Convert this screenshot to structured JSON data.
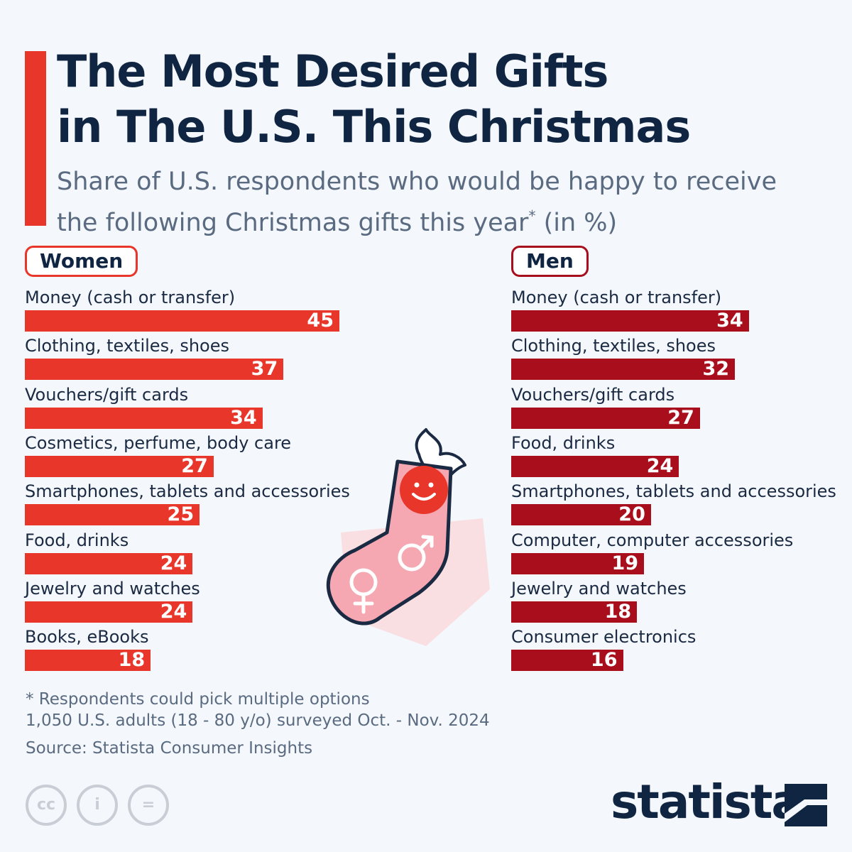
{
  "title_line1": "The Most Desired Gifts",
  "title_line2": "in The U.S. This Christmas",
  "subtitle_line1": "Share of U.S. respondents who would be happy to receive",
  "subtitle_line2_pre": "the following Christmas gifts this year",
  "subtitle_asterisk": "*",
  "subtitle_line2_post": " (in %)",
  "colors": {
    "women": "#e8362b",
    "men": "#a80e1b",
    "title": "#0f2542",
    "muted": "#5a6b81"
  },
  "chart_data": [
    {
      "type": "bar",
      "orientation": "horizontal",
      "group_label": "Women",
      "categories": [
        "Money (cash or transfer)",
        "Clothing, textiles, shoes",
        "Vouchers/gift cards",
        "Cosmetics, perfume, body care",
        "Smartphones, tablets and accessories",
        "Food, drinks",
        "Jewelry and watches",
        "Books, eBooks"
      ],
      "values": [
        45,
        37,
        34,
        27,
        25,
        24,
        24,
        18
      ],
      "xlim": [
        0,
        45
      ]
    },
    {
      "type": "bar",
      "orientation": "horizontal",
      "group_label": "Men",
      "categories": [
        "Money (cash or transfer)",
        "Clothing, textiles, shoes",
        "Vouchers/gift cards",
        "Food, drinks",
        "Smartphones, tablets and accessories",
        "Computer, computer accessories",
        "Jewelry and watches",
        "Consumer electronics"
      ],
      "values": [
        34,
        32,
        27,
        24,
        20,
        19,
        18,
        16
      ],
      "xlim": [
        0,
        45
      ]
    }
  ],
  "footnote_line1": "* Respondents could pick multiple options",
  "footnote_line2": "1,050 U.S. adults (18 - 80 y/o) surveyed Oct. - Nov. 2024",
  "source": "Source: Statista Consumer Insights",
  "license_icons": [
    "cc-icon",
    "attribution-icon",
    "no-derivatives-icon"
  ],
  "license_glyphs": [
    "cc",
    "i",
    "="
  ],
  "logo_text": "statista",
  "illustration": [
    "christmas-stocking-icon",
    "smiley-icon",
    "male-symbol-icon",
    "female-symbol-icon",
    "holly-leaf-icon"
  ]
}
